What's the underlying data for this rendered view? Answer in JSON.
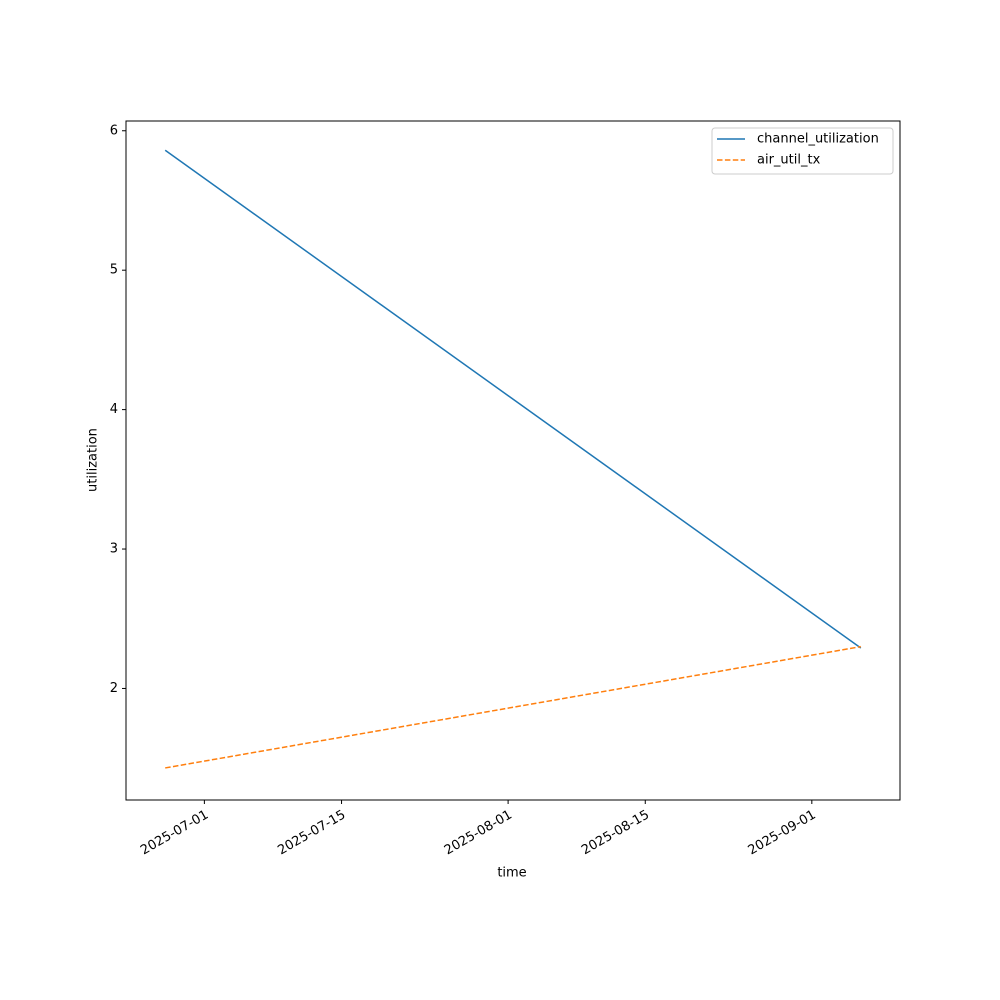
{
  "chart_data": {
    "type": "line",
    "x_label": "time",
    "y_label": "utilization",
    "x": [
      "2025-06-27",
      "2025-09-06"
    ],
    "series": [
      {
        "name": "channel_utilization",
        "color": "#1f77b4",
        "linestyle": "solid",
        "values": [
          5.86,
          2.29
        ]
      },
      {
        "name": "air_util_tx",
        "color": "#ff7f0e",
        "linestyle": "dashed",
        "values": [
          1.43,
          2.3
        ]
      }
    ],
    "xlim": [
      "2025-06-23",
      "2025-09-10"
    ],
    "xticks": [
      "2025-07-01",
      "2025-07-15",
      "2025-08-01",
      "2025-08-15",
      "2025-09-01"
    ],
    "ylim": [
      1.2,
      6.07
    ],
    "yticks": [
      2,
      3,
      4,
      5,
      6
    ],
    "grid": false,
    "legend": "upper right"
  }
}
